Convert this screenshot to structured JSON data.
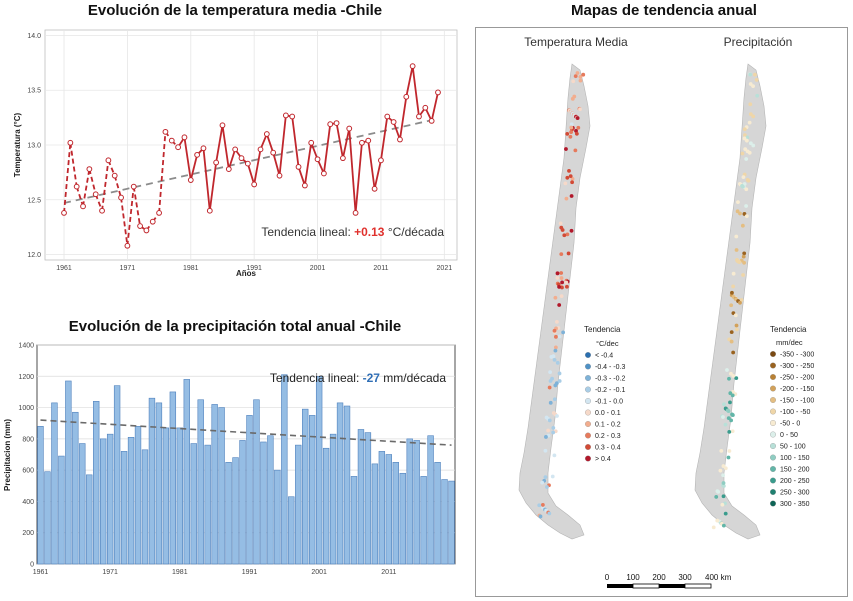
{
  "titles": {
    "temperature": "Evolución de la temperatura media -Chile",
    "precipitation": "Evolución de la precipitación total anual -Chile",
    "maps": "Mapas de tendencia anual"
  },
  "chart_data": [
    {
      "type": "line",
      "title": "Evolución de la temperatura media -Chile",
      "xlabel": "Años",
      "ylabel": "Temperatura (°C)",
      "xlim": [
        1958,
        2023
      ],
      "ylim": [
        11.95,
        14.05
      ],
      "x_ticks": [
        1961,
        1971,
        1981,
        1991,
        2001,
        2011,
        2021
      ],
      "y_ticks": [
        "12.0",
        "12.5",
        "13.0",
        "13.5",
        "14.0"
      ],
      "grid": true,
      "colors": {
        "line": "#c0272d",
        "trend": "#8c8c8c",
        "highlight": "#e0312d"
      },
      "annotation": {
        "prefix": "Tendencia lineal: ",
        "value": "+0.13",
        "suffix": " °C/década"
      },
      "dashed_until": 1979,
      "trend_line": {
        "x": [
          1961,
          2020
        ],
        "y": [
          12.47,
          13.24
        ]
      },
      "series": [
        {
          "x": [
            1961,
            1962,
            1963,
            1964,
            1965,
            1966,
            1967,
            1968,
            1969,
            1970,
            1971,
            1972,
            1973,
            1974,
            1975,
            1976,
            1977,
            1978,
            1979,
            1980,
            1981,
            1982,
            1983,
            1984,
            1985,
            1986,
            1987,
            1988,
            1989,
            1990,
            1991,
            1992,
            1993,
            1994,
            1995,
            1996,
            1997,
            1998,
            1999,
            2000,
            2001,
            2002,
            2003,
            2004,
            2005,
            2006,
            2007,
            2008,
            2009,
            2010,
            2011,
            2012,
            2013,
            2014,
            2015,
            2016,
            2017,
            2018,
            2019,
            2020
          ],
          "y": [
            12.38,
            13.02,
            12.62,
            12.44,
            12.78,
            12.55,
            12.4,
            12.86,
            12.72,
            12.52,
            12.08,
            12.62,
            12.26,
            12.22,
            12.3,
            12.38,
            13.12,
            13.04,
            12.98,
            13.07,
            12.68,
            12.91,
            12.97,
            12.4,
            12.84,
            13.18,
            12.78,
            12.96,
            12.88,
            12.83,
            12.64,
            12.96,
            13.1,
            12.93,
            12.72,
            13.27,
            13.26,
            12.8,
            12.63,
            13.02,
            12.87,
            12.74,
            13.19,
            13.2,
            12.88,
            13.15,
            12.38,
            13.02,
            13.04,
            12.6,
            12.86,
            13.26,
            13.21,
            13.05,
            13.44,
            13.72,
            13.26,
            13.34,
            13.22,
            13.48
          ]
        }
      ]
    },
    {
      "type": "bar",
      "title": "Evolución de la precipitación total anual -Chile",
      "xlabel": "",
      "ylabel": "Precipitacion (mm)",
      "ylim": [
        0,
        1400
      ],
      "x_ticks": [
        1961,
        1971,
        1981,
        1991,
        2001,
        2011
      ],
      "y_ticks": [
        0,
        200,
        400,
        600,
        800,
        1000,
        1200,
        1400
      ],
      "grid": true,
      "colors": {
        "bar": "#95bde4",
        "bar_edge": "#4f81bd",
        "trend": "#6a6a6a",
        "highlight": "#2f6eb5"
      },
      "annotation": {
        "prefix": "Tendencia lineal: ",
        "value": "-27",
        "suffix": " mm/década"
      },
      "trend_line": {
        "x": [
          1961,
          2020
        ],
        "y": [
          920,
          760
        ]
      },
      "series": [
        {
          "x": [
            1961,
            1962,
            1963,
            1964,
            1965,
            1966,
            1967,
            1968,
            1969,
            1970,
            1971,
            1972,
            1973,
            1974,
            1975,
            1976,
            1977,
            1978,
            1979,
            1980,
            1981,
            1982,
            1983,
            1984,
            1985,
            1986,
            1987,
            1988,
            1989,
            1990,
            1991,
            1992,
            1993,
            1994,
            1995,
            1996,
            1997,
            1998,
            1999,
            2000,
            2001,
            2002,
            2003,
            2004,
            2005,
            2006,
            2007,
            2008,
            2009,
            2010,
            2011,
            2012,
            2013,
            2014,
            2015,
            2016,
            2017,
            2018,
            2019,
            2020
          ],
          "values": [
            880,
            590,
            1030,
            690,
            1170,
            970,
            770,
            570,
            1040,
            800,
            830,
            1140,
            720,
            810,
            880,
            730,
            1060,
            1030,
            870,
            1100,
            870,
            1180,
            770,
            1050,
            760,
            1020,
            1000,
            650,
            680,
            790,
            950,
            1050,
            780,
            820,
            600,
            1210,
            430,
            760,
            990,
            950,
            1200,
            740,
            830,
            1030,
            1010,
            560,
            860,
            840,
            640,
            720,
            700,
            650,
            580,
            800,
            790,
            560,
            820,
            650,
            540,
            530
          ]
        }
      ]
    }
  ],
  "maps": {
    "temperature_title": "Temperatura Media",
    "precipitation_title": "Precipitación",
    "temperature_legend": {
      "title": "Tendencia",
      "unit": "°C/dec",
      "items": [
        {
          "label": "< -0.4",
          "color": "#2b6fb0"
        },
        {
          "label": "-0.4 - -0.3",
          "color": "#4f91c5"
        },
        {
          "label": "-0.3 - -0.2",
          "color": "#7eb2d8"
        },
        {
          "label": "-0.2 - -0.1",
          "color": "#a9cde6"
        },
        {
          "label": "-0.1 - 0.0",
          "color": "#d3e6f1"
        },
        {
          "label": "0.0 - 0.1",
          "color": "#f6d9c9"
        },
        {
          "label": "0.1 - 0.2",
          "color": "#f2ad8e"
        },
        {
          "label": "0.2 - 0.3",
          "color": "#e67a5c"
        },
        {
          "label": "0.3 - 0.4",
          "color": "#d24a36"
        },
        {
          "label": "> 0.4",
          "color": "#b2182b"
        }
      ]
    },
    "precipitation_legend": {
      "title": "Tendencia",
      "unit": "mm/dec",
      "items": [
        {
          "label": "-350 - -300",
          "color": "#7a4a12"
        },
        {
          "label": "-300 - -250",
          "color": "#9a6320"
        },
        {
          "label": "-250 - -200",
          "color": "#b98134"
        },
        {
          "label": "-200 - -150",
          "color": "#d2a15a"
        },
        {
          "label": "-150 - -100",
          "color": "#e4be82"
        },
        {
          "label": "-100 - -50",
          "color": "#efd6a8"
        },
        {
          "label": "-50 - 0",
          "color": "#f7ebd2"
        },
        {
          "label": "0 - 50",
          "color": "#dcefea"
        },
        {
          "label": "50 - 100",
          "color": "#b8e0d8"
        },
        {
          "label": "100 - 150",
          "color": "#8fcdc2"
        },
        {
          "label": "150 - 200",
          "color": "#62b6a8"
        },
        {
          "label": "200 - 250",
          "color": "#3a9c8d"
        },
        {
          "label": "250 - 300",
          "color": "#1f8070"
        },
        {
          "label": "300 - 350",
          "color": "#0d6456"
        }
      ]
    },
    "scale_bar": {
      "ticks": [
        "0",
        "100",
        "200",
        "300",
        "400 km"
      ]
    }
  }
}
